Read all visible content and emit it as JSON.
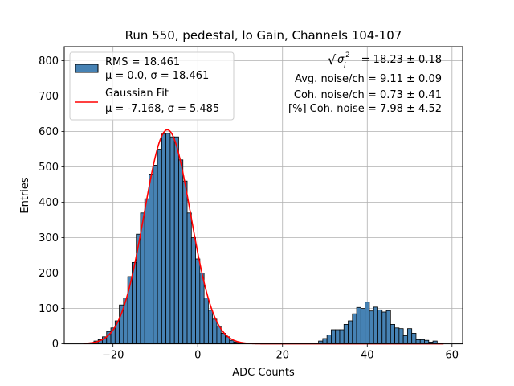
{
  "chart_data": {
    "type": "bar",
    "title": "Run 550, pedestal, lo Gain, Channels 104-107",
    "xlabel": "ADC Counts",
    "ylabel": "Entries",
    "xlim": [
      -31.5,
      62.5
    ],
    "ylim": [
      0,
      840
    ],
    "xticks": [
      -20,
      0,
      20,
      40,
      60
    ],
    "yticks": [
      0,
      100,
      200,
      300,
      400,
      500,
      600,
      700,
      800
    ],
    "grid": true,
    "legend_position": "top-left",
    "bin_width": 1,
    "histogram": {
      "name": "RMS = 18.461",
      "label_line2": "μ = 0.0, σ = 18.461",
      "color": "#4682b4",
      "edgecolor": "#000000",
      "bins": [
        {
          "x": -25,
          "y": 3
        },
        {
          "x": -24,
          "y": 8
        },
        {
          "x": -23,
          "y": 12
        },
        {
          "x": -22,
          "y": 20
        },
        {
          "x": -21,
          "y": 35
        },
        {
          "x": -20,
          "y": 45
        },
        {
          "x": -19,
          "y": 65
        },
        {
          "x": -18,
          "y": 110
        },
        {
          "x": -17,
          "y": 130
        },
        {
          "x": -16,
          "y": 190
        },
        {
          "x": -15,
          "y": 230
        },
        {
          "x": -14,
          "y": 310
        },
        {
          "x": -13,
          "y": 370
        },
        {
          "x": -12,
          "y": 410
        },
        {
          "x": -11,
          "y": 480
        },
        {
          "x": -10,
          "y": 505
        },
        {
          "x": -9,
          "y": 550
        },
        {
          "x": -8,
          "y": 593
        },
        {
          "x": -7,
          "y": 595
        },
        {
          "x": -6,
          "y": 585
        },
        {
          "x": -5,
          "y": 585
        },
        {
          "x": -4,
          "y": 520
        },
        {
          "x": -3,
          "y": 460
        },
        {
          "x": -2,
          "y": 370
        },
        {
          "x": -1,
          "y": 300
        },
        {
          "x": 0,
          "y": 240
        },
        {
          "x": 1,
          "y": 200
        },
        {
          "x": 2,
          "y": 130
        },
        {
          "x": 3,
          "y": 95
        },
        {
          "x": 4,
          "y": 70
        },
        {
          "x": 5,
          "y": 50
        },
        {
          "x": 6,
          "y": 30
        },
        {
          "x": 7,
          "y": 20
        },
        {
          "x": 8,
          "y": 10
        },
        {
          "x": 9,
          "y": 5
        },
        {
          "x": 10,
          "y": 3
        },
        {
          "x": 11,
          "y": 1
        },
        {
          "x": 28,
          "y": 2
        },
        {
          "x": 29,
          "y": 8
        },
        {
          "x": 30,
          "y": 15
        },
        {
          "x": 31,
          "y": 25
        },
        {
          "x": 32,
          "y": 40
        },
        {
          "x": 33,
          "y": 40
        },
        {
          "x": 34,
          "y": 40
        },
        {
          "x": 35,
          "y": 55
        },
        {
          "x": 36,
          "y": 65
        },
        {
          "x": 37,
          "y": 85
        },
        {
          "x": 38,
          "y": 103
        },
        {
          "x": 39,
          "y": 100
        },
        {
          "x": 40,
          "y": 118
        },
        {
          "x": 41,
          "y": 93
        },
        {
          "x": 42,
          "y": 104
        },
        {
          "x": 43,
          "y": 96
        },
        {
          "x": 44,
          "y": 90
        },
        {
          "x": 45,
          "y": 94
        },
        {
          "x": 46,
          "y": 55
        },
        {
          "x": 47,
          "y": 45
        },
        {
          "x": 48,
          "y": 43
        },
        {
          "x": 49,
          "y": 23
        },
        {
          "x": 50,
          "y": 43
        },
        {
          "x": 51,
          "y": 30
        },
        {
          "x": 52,
          "y": 12
        },
        {
          "x": 53,
          "y": 12
        },
        {
          "x": 54,
          "y": 10
        },
        {
          "x": 55,
          "y": 5
        },
        {
          "x": 56,
          "y": 8
        },
        {
          "x": 57,
          "y": 2
        }
      ]
    },
    "fit": {
      "name": "Gaussian Fit",
      "label_line2": "μ = -7.168, σ = 5.485",
      "color": "#ff0000",
      "mu": -7.168,
      "sigma": 5.485,
      "amplitude": 605,
      "x_range": [
        -27,
        58
      ]
    },
    "annotations": [
      {
        "prefix": "√",
        "sigma_symbol": "σ",
        "sub": "i",
        "sup": "2",
        "value": "= 18.23 ± 0.18"
      },
      {
        "text": "Avg. noise/ch = 9.11 ± 0.09"
      },
      {
        "text": "Coh. noise/ch = 0.73 ± 0.41"
      },
      {
        "text": "[%] Coh. noise = 7.98 ± 4.52"
      }
    ]
  }
}
